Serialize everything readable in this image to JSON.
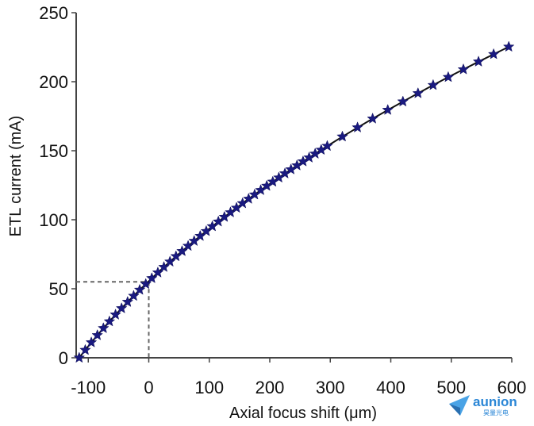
{
  "chart_data": {
    "type": "scatter",
    "title": "",
    "xlabel": "Axial focus shift (μm)",
    "ylabel": "ETL current (mA)",
    "xlim": [
      -120,
      600
    ],
    "ylim": [
      0,
      250
    ],
    "x_ticks": [
      -100,
      0,
      100,
      200,
      300,
      400,
      500,
      600
    ],
    "y_ticks": [
      0,
      50,
      100,
      150,
      200,
      250
    ],
    "grid": false,
    "legend": "none",
    "marker": "star",
    "marker_color": "#1a1a80",
    "fit_line_color": "#111111",
    "reference_lines": [
      {
        "x": 0,
        "y": 55,
        "style": "dashed",
        "color": "#666666"
      }
    ],
    "series": [
      {
        "x": [
          -115,
          -105,
          -95,
          -85,
          -75,
          -65,
          -55,
          -45,
          -35,
          -25,
          -15,
          -5,
          5,
          15,
          25,
          35,
          45,
          55,
          65,
          75,
          85,
          95,
          105,
          115,
          125,
          135,
          145,
          155,
          165,
          175,
          185,
          195,
          205,
          215,
          225,
          235,
          245,
          255,
          265,
          275,
          285,
          295,
          320,
          345,
          370,
          395,
          420,
          445,
          470,
          495,
          520,
          545,
          570,
          595
        ],
        "y": [
          0,
          5.6,
          11.1,
          16.3,
          21.4,
          26.3,
          31.2,
          35.8,
          40.4,
          44.8,
          49.2,
          53.4,
          57.6,
          61.7,
          65.7,
          69.6,
          73.5,
          77.2,
          81,
          84.6,
          88.2,
          91.7,
          95.2,
          98.6,
          102,
          105.3,
          108.6,
          111.9,
          115.1,
          118.2,
          121.4,
          124.5,
          127.5,
          130.5,
          133.5,
          136.4,
          139.3,
          142.2,
          145,
          147.8,
          150.6,
          153.4,
          160.2,
          166.8,
          173.2,
          179.5,
          185.6,
          191.6,
          197.5,
          203.3,
          208.9,
          214.5,
          219.9,
          225.3
        ]
      }
    ]
  },
  "logo": {
    "name": "aunion",
    "sub": "昊量光电"
  }
}
